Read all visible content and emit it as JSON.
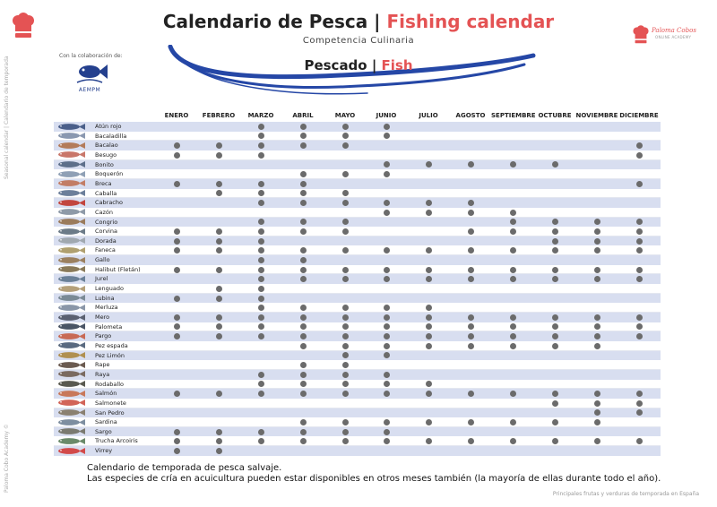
{
  "header": {
    "title_main": "Calendario de Pesca | ",
    "title_accent": "Fishing calendar",
    "subtitle": "Competencia Culinaria",
    "section_main": "Pescado | ",
    "section_accent": "Fish"
  },
  "partner": {
    "collab_text": "Con la colaboración de:",
    "logo_text": "AEMPM"
  },
  "brand": {
    "name": "Paloma Cobos",
    "tagline": "ONLINE ACADEMY"
  },
  "side_labels": {
    "top": "Seasonal calendar | Calendario de temporada",
    "bottom": "Paloma Cobo Academy ©"
  },
  "footer": {
    "right": "Principales frutas y verduras de temporada en España",
    "note_line1": "Calendario de temporada de pesca salvaje.",
    "note_line2": "Las especies de cría en acuicultura pueden estar disponibles en otros meses también (la mayoría de ellas durante todo el año)."
  },
  "colors": {
    "accent": "#e45354",
    "wave": "#2547a6",
    "stripe": "#d8def0",
    "dot": "#6b6b6b"
  },
  "months": [
    "ENERO",
    "FEBRERO",
    "MARZO",
    "ABRIL",
    "MAYO",
    "JUNIO",
    "JULIO",
    "AGOSTO",
    "SEPTIEMBRE",
    "OCTUBRE",
    "NOVIEMBRE",
    "DICIEMBRE"
  ],
  "fish": [
    {
      "name": "Atún rojo",
      "months": [
        3,
        4,
        5,
        6
      ]
    },
    {
      "name": "Bacaladilla",
      "months": [
        3,
        4,
        5,
        6
      ]
    },
    {
      "name": "Bacalao",
      "months": [
        1,
        2,
        3,
        4,
        5,
        12
      ]
    },
    {
      "name": "Besugo",
      "months": [
        1,
        2,
        3,
        12
      ]
    },
    {
      "name": "Bonito",
      "months": [
        6,
        7,
        8,
        9,
        10
      ]
    },
    {
      "name": "Boquerón",
      "months": [
        4,
        5,
        6
      ]
    },
    {
      "name": "Breca",
      "months": [
        1,
        2,
        3,
        4,
        12
      ]
    },
    {
      "name": "Caballa",
      "months": [
        2,
        3,
        4,
        5
      ]
    },
    {
      "name": "Cabracho",
      "months": [
        3,
        4,
        5,
        6,
        7,
        8
      ]
    },
    {
      "name": "Cazón",
      "months": [
        6,
        7,
        8,
        9
      ]
    },
    {
      "name": "Congrio",
      "months": [
        3,
        4,
        5,
        9,
        10,
        11,
        12
      ]
    },
    {
      "name": "Corvina",
      "months": [
        1,
        2,
        3,
        4,
        5,
        8,
        9,
        10,
        11,
        12
      ]
    },
    {
      "name": "Dorada",
      "months": [
        1,
        2,
        3,
        10,
        11,
        12
      ]
    },
    {
      "name": "Faneca",
      "months": [
        1,
        2,
        3,
        4,
        5,
        6,
        7,
        8,
        9,
        10,
        11,
        12
      ]
    },
    {
      "name": "Gallo",
      "months": [
        3,
        4
      ]
    },
    {
      "name": "Halibut (Fletán)",
      "months": [
        1,
        2,
        3,
        4,
        5,
        6,
        7,
        8,
        9,
        10,
        11,
        12
      ]
    },
    {
      "name": "Jurel",
      "months": [
        3,
        4,
        5,
        6,
        7,
        8,
        9,
        10,
        11,
        12
      ]
    },
    {
      "name": "Lenguado",
      "months": [
        2,
        3
      ]
    },
    {
      "name": "Lubina",
      "months": [
        1,
        2,
        3
      ]
    },
    {
      "name": "Merluza",
      "months": [
        3,
        4,
        5,
        6,
        7
      ]
    },
    {
      "name": "Mero",
      "months": [
        1,
        2,
        3,
        4,
        5,
        6,
        7,
        8,
        9,
        10,
        11,
        12
      ]
    },
    {
      "name": "Palometa",
      "months": [
        1,
        2,
        3,
        4,
        5,
        6,
        7,
        8,
        9,
        10,
        11,
        12
      ]
    },
    {
      "name": "Pargo",
      "months": [
        1,
        2,
        3,
        4,
        5,
        6,
        7,
        8,
        9,
        10,
        11,
        12
      ]
    },
    {
      "name": "Pez espada",
      "months": [
        4,
        5,
        6,
        7,
        8,
        9,
        10,
        11
      ]
    },
    {
      "name": "Pez Limón",
      "months": [
        5,
        6
      ]
    },
    {
      "name": "Rape",
      "months": [
        4,
        5
      ]
    },
    {
      "name": "Raya",
      "months": [
        3,
        4,
        5,
        6
      ]
    },
    {
      "name": "Rodaballo",
      "months": [
        3,
        4,
        5,
        6,
        7
      ]
    },
    {
      "name": "Salmón",
      "months": [
        1,
        2,
        3,
        4,
        5,
        6,
        7,
        8,
        9,
        10,
        11,
        12
      ]
    },
    {
      "name": "Salmonete",
      "months": [
        10,
        11,
        12
      ]
    },
    {
      "name": "San Pedro",
      "months": [
        11,
        12
      ]
    },
    {
      "name": "Sardina",
      "months": [
        4,
        5,
        6,
        7,
        8,
        9,
        10,
        11
      ]
    },
    {
      "name": "Sargo",
      "months": [
        1,
        2,
        3,
        4,
        5,
        6
      ]
    },
    {
      "name": "Trucha Arcoiris",
      "months": [
        1,
        2,
        3,
        4,
        5,
        6,
        7,
        8,
        9,
        10,
        11,
        12
      ]
    },
    {
      "name": "Virrey",
      "months": [
        1,
        2
      ]
    }
  ]
}
